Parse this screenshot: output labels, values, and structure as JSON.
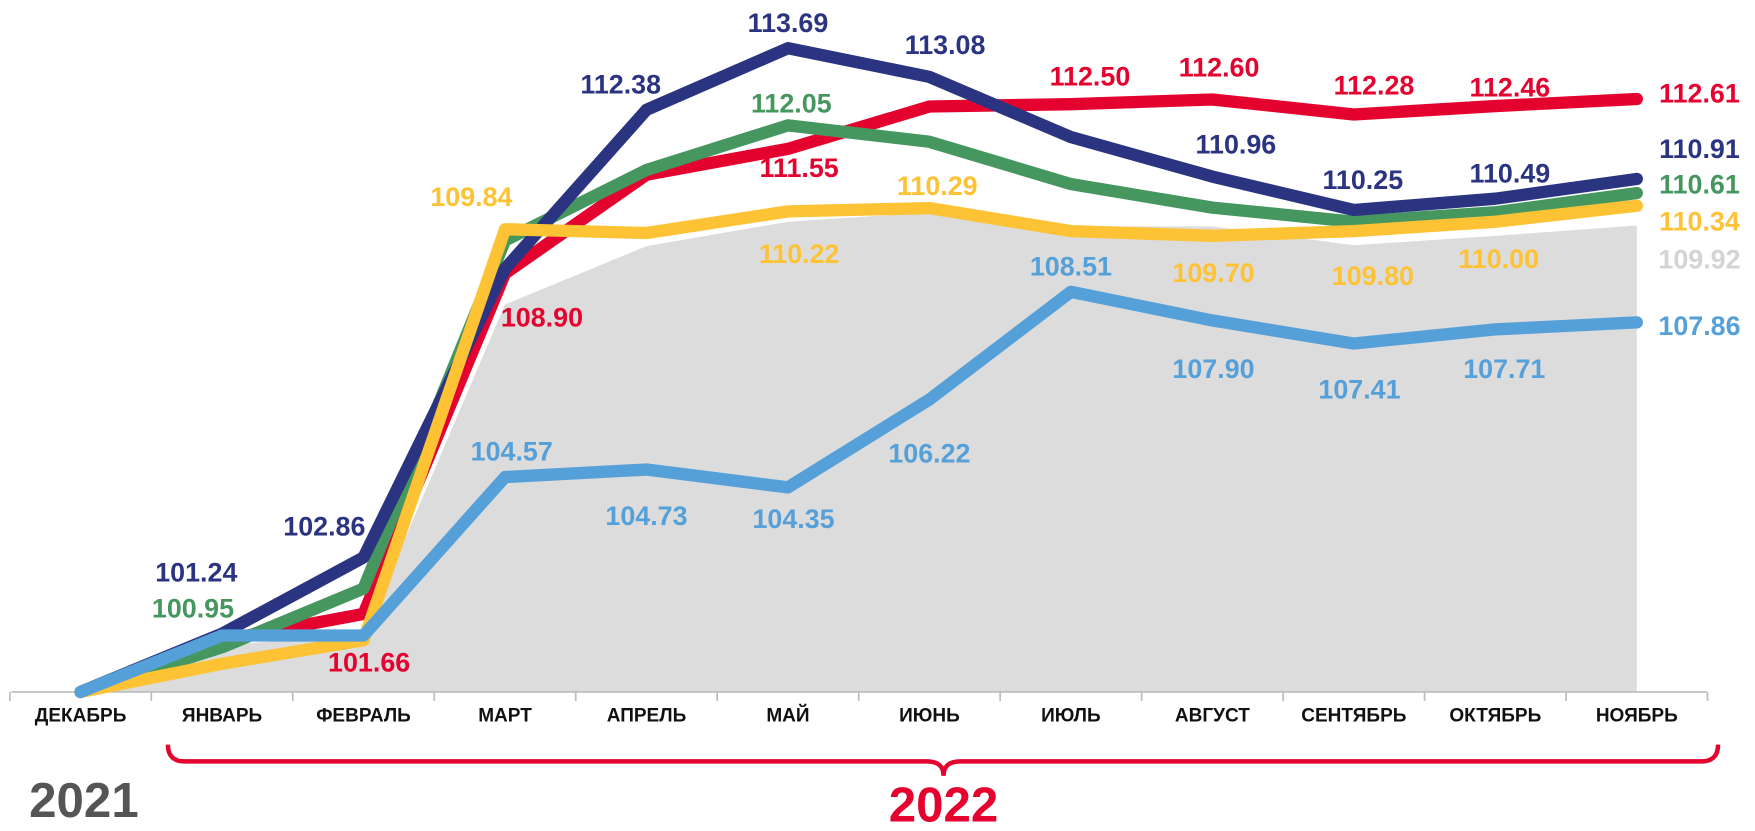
{
  "chart_data": {
    "type": "line",
    "categories": [
      "ДЕКАБРЬ",
      "ЯНВАРЬ",
      "ФЕВРАЛЬ",
      "МАРТ",
      "АПРЕЛЬ",
      "МАЙ",
      "ИЮНЬ",
      "ИЮЛЬ",
      "АВГУСТ",
      "СЕНТЯБРЬ",
      "ОКТЯБРЬ",
      "НОЯБРЬ"
    ],
    "ylim": [
      100,
      114.71
    ],
    "area": {
      "color": "#dcdcdc",
      "label_color": "#d4d4d4",
      "values": [
        100,
        101.0,
        101.2,
        108.24,
        109.48,
        110.0,
        110.2,
        109.9,
        109.9,
        109.5,
        109.7,
        109.92
      ],
      "value_labels": [
        null,
        null,
        null,
        null,
        null,
        null,
        null,
        null,
        null,
        null,
        null,
        "109.92"
      ]
    },
    "series": [
      {
        "color": "#e4032e",
        "values": [
          100,
          101.1,
          101.66,
          108.9,
          111.0,
          111.55,
          112.45,
          112.5,
          112.6,
          112.28,
          112.46,
          112.61
        ],
        "value_labels": [
          null,
          null,
          "101.66",
          "108.90",
          null,
          "111.55",
          null,
          "112.50",
          "112.60",
          "112.28",
          "112.46",
          "112.61"
        ]
      },
      {
        "color": "#46975f",
        "values": [
          100,
          100.95,
          102.2,
          109.6,
          111.1,
          112.05,
          111.7,
          110.8,
          110.3,
          110.0,
          110.2,
          110.61
        ],
        "value_labels": [
          null,
          "100.95",
          null,
          null,
          null,
          "112.05",
          null,
          null,
          null,
          null,
          null,
          "110.61"
        ]
      },
      {
        "color": "#2b3481",
        "values": [
          100,
          101.24,
          102.86,
          109.0,
          112.38,
          113.69,
          113.08,
          111.8,
          110.96,
          110.25,
          110.49,
          110.91
        ],
        "value_labels": [
          null,
          "101.24",
          "102.86",
          null,
          "112.38",
          "113.69",
          "113.08",
          null,
          "110.96",
          "110.25",
          "110.49",
          "110.91"
        ]
      },
      {
        "color": "#fec235",
        "values": [
          100,
          100.6,
          101.1,
          109.84,
          109.76,
          110.22,
          110.29,
          109.8,
          109.7,
          109.8,
          110.0,
          110.34
        ],
        "value_labels": [
          null,
          null,
          null,
          "109.84",
          null,
          "110.22",
          "110.29",
          null,
          "109.70",
          "109.80",
          "110.00",
          "110.34"
        ]
      },
      {
        "color": "#55a0d9",
        "values": [
          100,
          101.2,
          101.2,
          104.57,
          104.73,
          104.35,
          106.22,
          108.51,
          107.9,
          107.41,
          107.71,
          107.86
        ],
        "value_labels": [
          null,
          null,
          null,
          "104.57",
          "104.73",
          "104.35",
          "106.22",
          "108.51",
          "107.90",
          "107.41",
          "107.71",
          "107.86"
        ]
      }
    ],
    "annotations": [
      {
        "text": "2021",
        "color": "#555555"
      },
      {
        "text": "2022",
        "color": "#e4032e"
      }
    ]
  }
}
